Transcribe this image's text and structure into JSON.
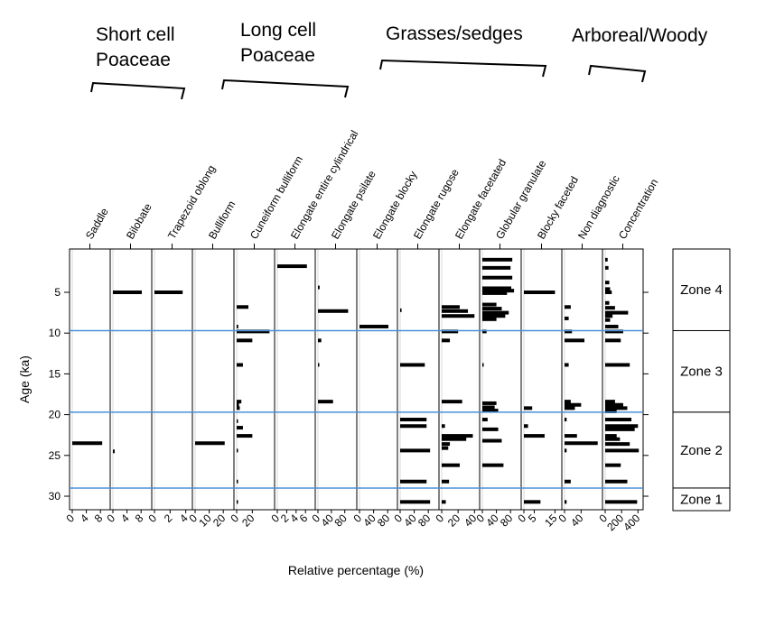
{
  "chart_data": {
    "type": "bar",
    "subtype": "stratigraphic-diagram",
    "xlabel": "Relative percentage (%)",
    "ylabel": "Age (ka)",
    "ylim": [
      0,
      32
    ],
    "y_ticks": [
      5,
      10,
      15,
      20,
      25,
      30
    ],
    "orientation": "horizontal-bars",
    "groups": [
      {
        "label": "Short cell\nPoaceae",
        "columns": [
          "Saddle",
          "Bilobate",
          "Trapezoid oblong"
        ]
      },
      {
        "label": "Long cell\nPoaceae",
        "columns": [
          "Bulliform",
          "Cuneiform bulliform",
          "Elongate entire cylindrical",
          "Elongate psilate"
        ]
      },
      {
        "label": "Grasses/sedges",
        "columns": [
          "Elongate blocky",
          "Elongate rugose",
          "Elongate facetated",
          "Globular granulate"
        ]
      },
      {
        "label": "Arboreal/Woody",
        "columns": [
          "Blocky faceted",
          "Non diagnostic"
        ]
      }
    ],
    "zone_boundaries": [
      9.7,
      19.7,
      29
    ],
    "zones": [
      {
        "label": "Zone 4",
        "from": 1,
        "to": 9.7
      },
      {
        "label": "Zone 3",
        "from": 9.7,
        "to": 19.7
      },
      {
        "label": "Zone 2",
        "from": 19.7,
        "to": 29
      },
      {
        "label": "Zone 1",
        "from": 29,
        "to": 32
      }
    ],
    "columns": [
      {
        "name": "Saddle",
        "ticks": [
          "0",
          "4",
          "8"
        ],
        "tick_values": [
          0,
          4,
          8
        ],
        "xlim": [
          0,
          10
        ],
        "samples": [
          {
            "age": 23.5,
            "value": 8.5
          }
        ]
      },
      {
        "name": "Bilobate",
        "ticks": [
          "0",
          "4",
          "8"
        ],
        "tick_values": [
          0,
          4,
          8
        ],
        "xlim": [
          0,
          10
        ],
        "samples": [
          {
            "age": 5.0,
            "value": 8.2
          },
          {
            "age": 24.5,
            "value": 0.5
          }
        ]
      },
      {
        "name": "Trapezoid oblong",
        "ticks": [
          "0",
          "2",
          "4"
        ],
        "tick_values": [
          0,
          2,
          4
        ],
        "xlim": [
          0,
          4.5
        ],
        "samples": [
          {
            "age": 5.0,
            "value": 3.6
          }
        ]
      },
      {
        "name": "Bulliform",
        "ticks": [
          "0",
          "10",
          "20"
        ],
        "tick_values": [
          0,
          10,
          20
        ],
        "xlim": [
          0,
          25
        ],
        "samples": [
          {
            "age": 23.5,
            "value": 21
          }
        ]
      },
      {
        "name": "Cuneiform bulliform",
        "ticks": [
          "0",
          "20"
        ],
        "tick_values": [
          0,
          20
        ],
        "xlim": [
          0,
          45
        ],
        "samples": [
          {
            "age": 6.8,
            "value": 15
          },
          {
            "age": 9.2,
            "value": 2
          },
          {
            "age": 9.8,
            "value": 42
          },
          {
            "age": 10.9,
            "value": 20
          },
          {
            "age": 13.9,
            "value": 8
          },
          {
            "age": 18.4,
            "value": 6
          },
          {
            "age": 18.8,
            "value": 3
          },
          {
            "age": 19.2,
            "value": 4
          },
          {
            "age": 20.8,
            "value": 1
          },
          {
            "age": 21.6,
            "value": 8
          },
          {
            "age": 22.6,
            "value": 20
          },
          {
            "age": 24.4,
            "value": 1
          },
          {
            "age": 28.2,
            "value": 1
          },
          {
            "age": 30.7,
            "value": 1
          }
        ]
      },
      {
        "name": "Elongate entire cylindrical",
        "ticks": [
          "0",
          "2",
          "4",
          "6"
        ],
        "tick_values": [
          0,
          2,
          4,
          6
        ],
        "xlim": [
          0,
          7.5
        ],
        "samples": [
          {
            "age": 1.8,
            "value": 6.3
          }
        ]
      },
      {
        "name": "Elongate psilate",
        "ticks": [
          "0",
          "40",
          "80"
        ],
        "tick_values": [
          0,
          40,
          80
        ],
        "xlim": [
          0,
          105
        ],
        "samples": [
          {
            "age": 4.4,
            "value": 5
          },
          {
            "age": 7.3,
            "value": 90
          },
          {
            "age": 10.9,
            "value": 10
          },
          {
            "age": 13.9,
            "value": 2
          },
          {
            "age": 18.4,
            "value": 45
          }
        ]
      },
      {
        "name": "Elongate blocky",
        "ticks": [
          "0",
          "40",
          "80"
        ],
        "tick_values": [
          0,
          40,
          80
        ],
        "xlim": [
          0,
          100
        ],
        "samples": [
          {
            "age": 9.2,
            "value": 82
          }
        ]
      },
      {
        "name": "Elongate rugose",
        "ticks": [
          "0",
          "40",
          "80"
        ],
        "tick_values": [
          0,
          40,
          80
        ],
        "xlim": [
          0,
          100
        ],
        "samples": [
          {
            "age": 7.2,
            "value": 4
          },
          {
            "age": 13.9,
            "value": 70
          },
          {
            "age": 20.6,
            "value": 75
          },
          {
            "age": 21.4,
            "value": 75
          },
          {
            "age": 24.4,
            "value": 85
          },
          {
            "age": 28.2,
            "value": 75
          },
          {
            "age": 30.7,
            "value": 85
          }
        ]
      },
      {
        "name": "Elongate facetated",
        "ticks": [
          "0",
          "20",
          "40"
        ],
        "tick_values": [
          0,
          20,
          40
        ],
        "xlim": [
          0,
          43
        ],
        "samples": [
          {
            "age": 6.8,
            "value": 22
          },
          {
            "age": 7.3,
            "value": 32
          },
          {
            "age": 7.9,
            "value": 40
          },
          {
            "age": 9.8,
            "value": 20
          },
          {
            "age": 10.9,
            "value": 10
          },
          {
            "age": 18.4,
            "value": 25
          },
          {
            "age": 21.4,
            "value": 4
          },
          {
            "age": 22.6,
            "value": 38
          },
          {
            "age": 23.0,
            "value": 30
          },
          {
            "age": 23.6,
            "value": 10
          },
          {
            "age": 24.1,
            "value": 8
          },
          {
            "age": 26.2,
            "value": 22
          },
          {
            "age": 28.2,
            "value": 9
          },
          {
            "age": 30.7,
            "value": 5
          }
        ]
      },
      {
        "name": "Globular granulate",
        "ticks": [
          "0",
          "40",
          "80"
        ],
        "tick_values": [
          0,
          40,
          80
        ],
        "xlim": [
          0,
          100
        ],
        "samples": [
          {
            "age": 1.0,
            "value": 85
          },
          {
            "age": 2.0,
            "value": 80
          },
          {
            "age": 3.2,
            "value": 85
          },
          {
            "age": 4.5,
            "value": 82
          },
          {
            "age": 4.8,
            "value": 90
          },
          {
            "age": 5.1,
            "value": 70
          },
          {
            "age": 6.5,
            "value": 40
          },
          {
            "age": 7.0,
            "value": 55
          },
          {
            "age": 7.5,
            "value": 75
          },
          {
            "age": 7.9,
            "value": 65
          },
          {
            "age": 8.3,
            "value": 40
          },
          {
            "age": 9.8,
            "value": 12
          },
          {
            "age": 13.9,
            "value": 2
          },
          {
            "age": 18.6,
            "value": 40
          },
          {
            "age": 19.1,
            "value": 35
          },
          {
            "age": 19.5,
            "value": 45
          },
          {
            "age": 20.6,
            "value": 15
          },
          {
            "age": 21.8,
            "value": 45
          },
          {
            "age": 23.2,
            "value": 55
          },
          {
            "age": 26.2,
            "value": 60
          }
        ]
      },
      {
        "name": "Blocky faceted",
        "ticks": [
          "0",
          "5",
          "15"
        ],
        "tick_values": [
          0,
          5,
          15
        ],
        "xlim": [
          0,
          17
        ],
        "samples": [
          {
            "age": 5.0,
            "value": 15
          },
          {
            "age": 19.2,
            "value": 4
          },
          {
            "age": 21.4,
            "value": 2
          },
          {
            "age": 22.6,
            "value": 10
          },
          {
            "age": 30.7,
            "value": 8
          }
        ]
      },
      {
        "name": "Non diagnostic",
        "ticks": [
          "0",
          "40"
        ],
        "tick_values": [
          0,
          40
        ],
        "xlim": [
          0,
          85
        ],
        "samples": [
          {
            "age": 6.8,
            "value": 15
          },
          {
            "age": 8.2,
            "value": 10
          },
          {
            "age": 9.8,
            "value": 18
          },
          {
            "age": 10.9,
            "value": 48
          },
          {
            "age": 13.9,
            "value": 10
          },
          {
            "age": 18.4,
            "value": 15
          },
          {
            "age": 18.8,
            "value": 40
          },
          {
            "age": 19.2,
            "value": 25
          },
          {
            "age": 20.6,
            "value": 5
          },
          {
            "age": 22.6,
            "value": 30
          },
          {
            "age": 23.5,
            "value": 80
          },
          {
            "age": 24.4,
            "value": 5
          },
          {
            "age": 28.2,
            "value": 15
          },
          {
            "age": 30.7,
            "value": 5
          }
        ]
      },
      {
        "name": "Concentration",
        "ticks": [
          "0",
          "200",
          "400"
        ],
        "tick_values": [
          0,
          200,
          400
        ],
        "xlim": [
          0,
          430
        ],
        "samples": [
          {
            "age": 1.0,
            "value": 30
          },
          {
            "age": 2.0,
            "value": 40
          },
          {
            "age": 3.8,
            "value": 50
          },
          {
            "age": 4.6,
            "value": 60
          },
          {
            "age": 5.0,
            "value": 80
          },
          {
            "age": 6.3,
            "value": 50
          },
          {
            "age": 6.9,
            "value": 120
          },
          {
            "age": 7.5,
            "value": 280
          },
          {
            "age": 7.9,
            "value": 90
          },
          {
            "age": 8.4,
            "value": 60
          },
          {
            "age": 9.2,
            "value": 160
          },
          {
            "age": 9.8,
            "value": 220
          },
          {
            "age": 10.9,
            "value": 190
          },
          {
            "age": 13.9,
            "value": 300
          },
          {
            "age": 18.4,
            "value": 120
          },
          {
            "age": 18.8,
            "value": 220
          },
          {
            "age": 19.2,
            "value": 270
          },
          {
            "age": 19.6,
            "value": 140
          },
          {
            "age": 20.6,
            "value": 320
          },
          {
            "age": 21.4,
            "value": 400
          },
          {
            "age": 21.8,
            "value": 360
          },
          {
            "age": 22.6,
            "value": 140
          },
          {
            "age": 23.0,
            "value": 180
          },
          {
            "age": 23.6,
            "value": 300
          },
          {
            "age": 24.4,
            "value": 410
          },
          {
            "age": 26.2,
            "value": 190
          },
          {
            "age": 28.2,
            "value": 270
          },
          {
            "age": 30.7,
            "value": 390
          }
        ]
      }
    ]
  }
}
